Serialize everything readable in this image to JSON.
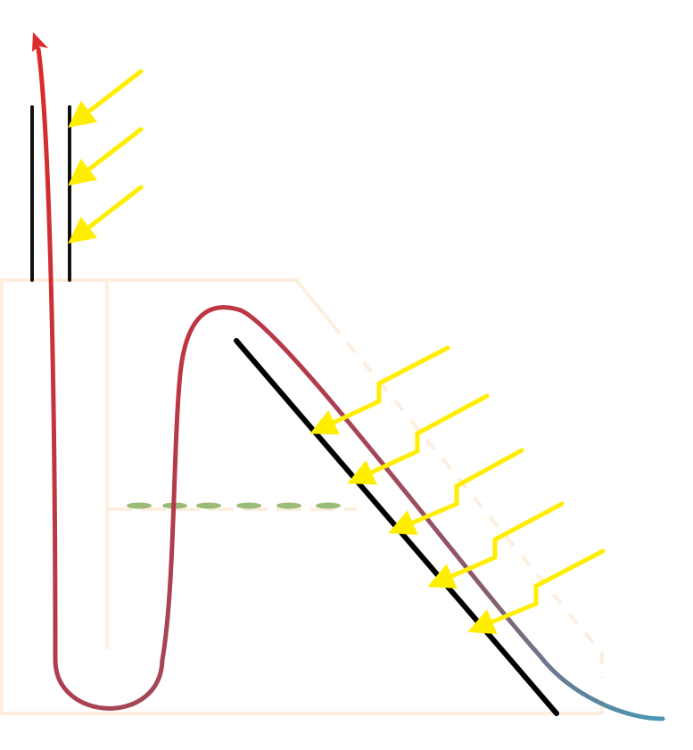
{
  "colors": {
    "outline": "#fdeedd",
    "curve_start": "#dc2a2a",
    "curve_mid": "#8a5a6a",
    "curve_end": "#4a97b4",
    "black_lines": "#000000",
    "arrows": "#ffee00",
    "dashed_level": "#9bbb78"
  },
  "icons": {
    "light_arrow": "yellow-arrow",
    "zigzag_arrow": "yellow-zigzag-arrow",
    "flow_arrow": "red-arrow-head"
  }
}
